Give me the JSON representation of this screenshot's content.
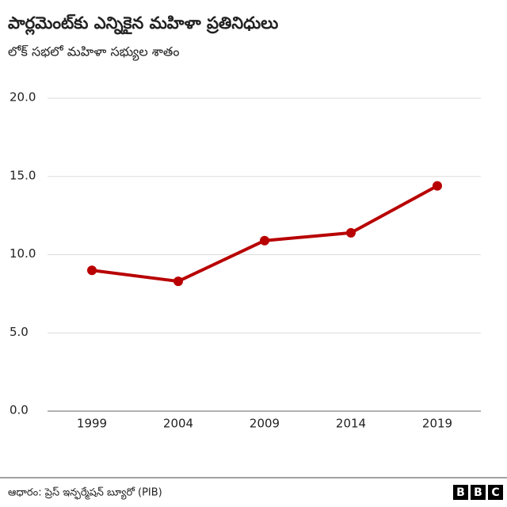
{
  "chart_data": {
    "type": "line",
    "title": "పార్లమెంట్‌కు ఎన్నికైన మహిళా ప్రతినిధులు",
    "subtitle": "లోక్ సభలో మహిళా సభ్యుల శాతం",
    "categories": [
      "1999",
      "2004",
      "2009",
      "2014",
      "2019"
    ],
    "series": [
      {
        "color": "#b80000",
        "values": [
          9.0,
          8.3,
          10.9,
          11.4,
          14.4
        ]
      }
    ],
    "ylim": [
      0,
      20
    ],
    "yticks": [
      {
        "value": 0,
        "label": "0.0"
      },
      {
        "value": 5,
        "label": "5.0"
      },
      {
        "value": 10,
        "label": "10.0"
      },
      {
        "value": 15,
        "label": "15.0"
      },
      {
        "value": 20,
        "label": "20.0"
      }
    ],
    "grid": true,
    "source": "ఆధారం: ప్రెస్ ఇన్ఫర్మేషన్ బ్యూరో (PIB)",
    "logo": [
      "B",
      "B",
      "C"
    ]
  }
}
